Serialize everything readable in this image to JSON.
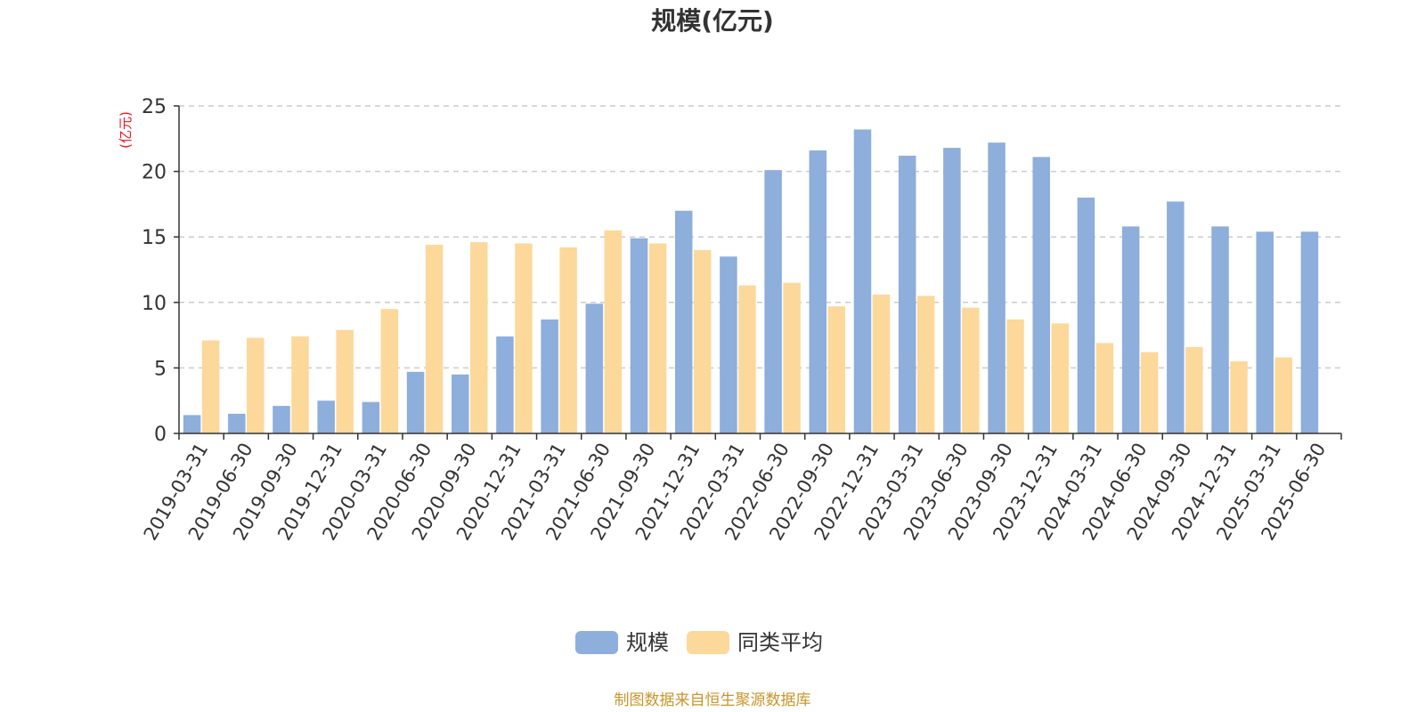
{
  "chart_data": {
    "type": "bar",
    "title": "规模(亿元)",
    "ylabel": "(亿元)",
    "xlabel": "",
    "ylim": [
      0,
      25
    ],
    "yticks": [
      0,
      5,
      10,
      15,
      20,
      25
    ],
    "grid": true,
    "legend_position": "bottom-center",
    "categories": [
      "2019-03-31",
      "2019-06-30",
      "2019-09-30",
      "2019-12-31",
      "2020-03-31",
      "2020-06-30",
      "2020-09-30",
      "2020-12-31",
      "2021-03-31",
      "2021-06-30",
      "2021-09-30",
      "2021-12-31",
      "2022-03-31",
      "2022-06-30",
      "2022-09-30",
      "2022-12-31",
      "2023-03-31",
      "2023-06-30",
      "2023-09-30",
      "2023-12-31",
      "2024-03-31",
      "2024-06-30",
      "2024-09-30",
      "2024-12-31",
      "2025-03-31",
      "2025-06-30"
    ],
    "series": [
      {
        "name": "规模",
        "color": "#8eaedb",
        "values": [
          1.4,
          1.5,
          2.1,
          2.5,
          2.4,
          4.7,
          4.5,
          7.4,
          8.7,
          9.9,
          14.9,
          17.0,
          13.5,
          20.1,
          21.6,
          23.2,
          21.2,
          21.8,
          22.2,
          21.1,
          18.0,
          15.8,
          17.7,
          15.8,
          15.4,
          15.4
        ]
      },
      {
        "name": "同类平均",
        "color": "#fdd89b",
        "values": [
          7.1,
          7.3,
          7.4,
          7.9,
          9.5,
          14.4,
          14.6,
          14.5,
          14.2,
          15.5,
          14.5,
          14.0,
          11.3,
          11.5,
          9.7,
          10.6,
          10.5,
          9.6,
          8.7,
          8.4,
          6.9,
          6.2,
          6.6,
          5.5,
          5.8,
          null
        ]
      }
    ]
  },
  "footer": {
    "source": "制图数据来自恒生聚源数据库"
  }
}
